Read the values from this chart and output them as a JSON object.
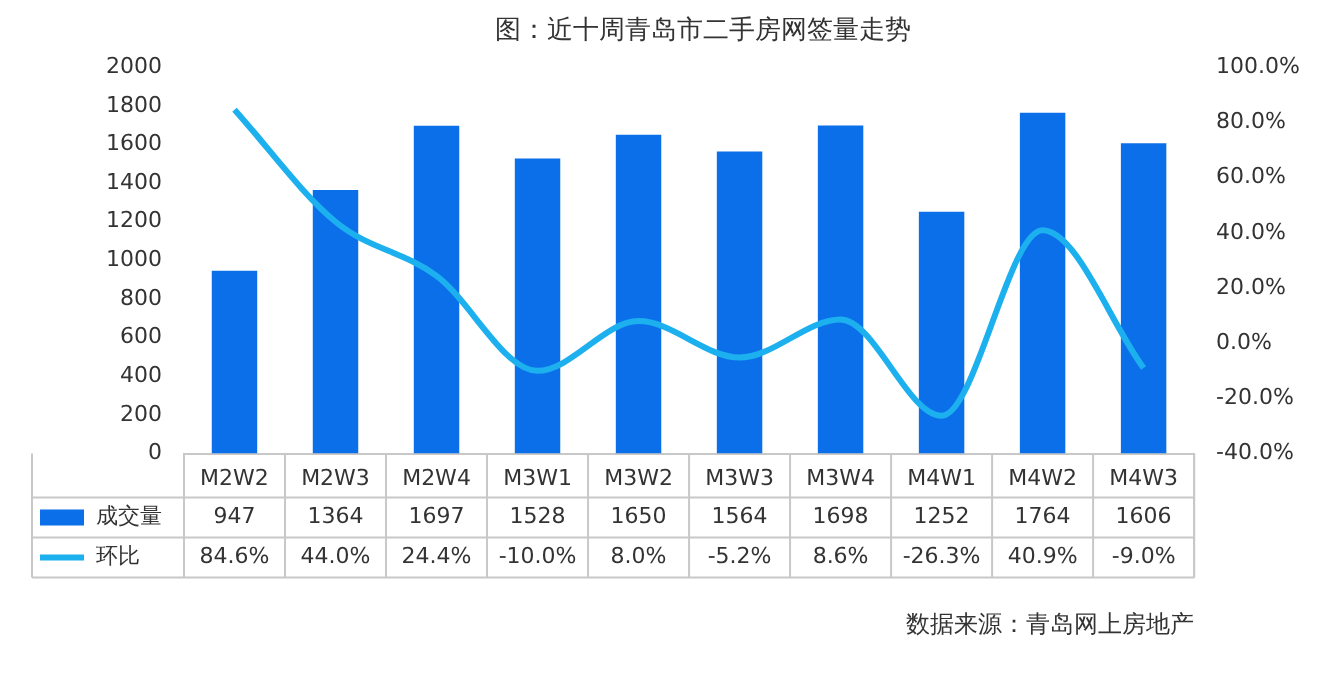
{
  "chart_data": {
    "type": "bar",
    "title": "图：近十周青岛市二手房网签量走势",
    "categories": [
      "M2W2",
      "M2W3",
      "M2W4",
      "M3W1",
      "M3W2",
      "M3W3",
      "M3W4",
      "M4W1",
      "M4W2",
      "M4W3"
    ],
    "series": [
      {
        "name": "成交量",
        "color": "#0c6fea",
        "values": [
          947,
          1364,
          1697,
          1528,
          1650,
          1564,
          1698,
          1252,
          1764,
          1606
        ],
        "value_labels": [
          "947",
          "1364",
          "1697",
          "1528",
          "1650",
          "1564",
          "1698",
          "1252",
          "1764",
          "1606"
        ]
      },
      {
        "name": "环比",
        "type": "line",
        "axis": "y2",
        "color": "#1cb0ee",
        "values": [
          84.6,
          44.0,
          24.4,
          -10.0,
          8.0,
          -5.2,
          8.6,
          -26.3,
          40.9,
          -9.0
        ],
        "value_labels": [
          "84.6%",
          "44.0%",
          "24.4%",
          "-10.0%",
          "8.0%",
          "-5.2%",
          "8.6%",
          "-26.3%",
          "40.9%",
          "-9.0%"
        ],
        "marker": "none",
        "line_style": "solid"
      }
    ],
    "ylim": [
      0,
      2000
    ],
    "yticks": [
      0,
      200,
      400,
      600,
      800,
      1000,
      1200,
      1400,
      1600,
      1800,
      2000
    ],
    "y2lim": [
      -40,
      100
    ],
    "y2ticks": [
      {
        "value": -40,
        "label": "-40.0%"
      },
      {
        "value": -20,
        "label": "-20.0%"
      },
      {
        "value": 0,
        "label": "0.0%"
      },
      {
        "value": 20,
        "label": "20.0%"
      },
      {
        "value": 40,
        "label": "40.0%"
      },
      {
        "value": 60,
        "label": "60.0%"
      },
      {
        "value": 80,
        "label": "80.0%"
      },
      {
        "value": 100,
        "label": "100.0%"
      }
    ],
    "grid": false,
    "legend": "bottom",
    "annotations": [
      "数据来源：青岛网上房地产"
    ]
  }
}
